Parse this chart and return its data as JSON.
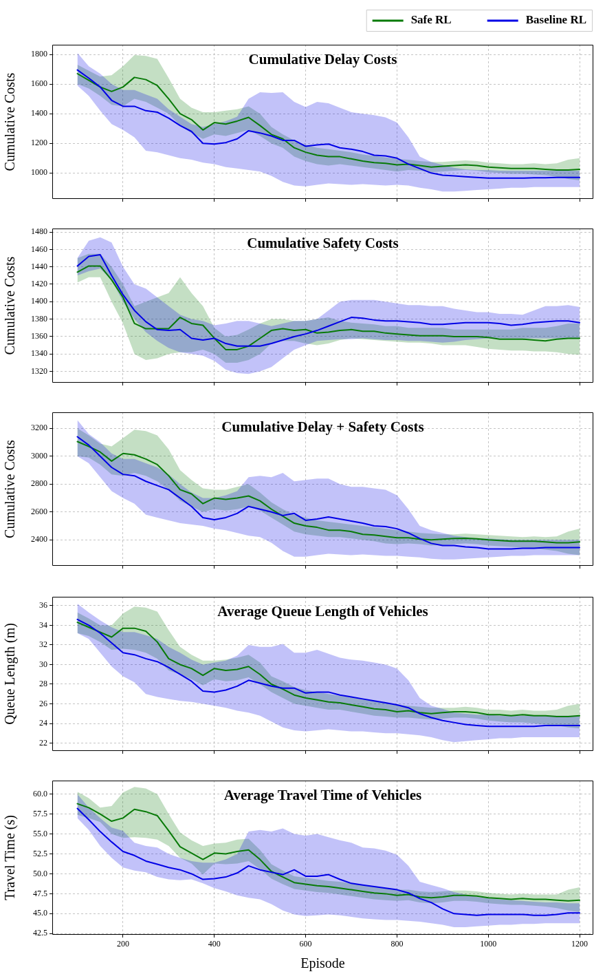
{
  "chart_data": [
    {
      "type": "line",
      "title": "Cumulative Delay Costs",
      "ylabel": "Cumulative Costs",
      "legend": "top right",
      "tick_labels": "y",
      "grid": true,
      "x": [
        100,
        125,
        150,
        175,
        200,
        225,
        250,
        275,
        300,
        325,
        350,
        375,
        400,
        425,
        450,
        475,
        500,
        525,
        550,
        575,
        600,
        625,
        650,
        675,
        700,
        725,
        750,
        775,
        800,
        825,
        850,
        875,
        900,
        925,
        950,
        975,
        1000,
        1025,
        1050,
        1075,
        1100,
        1125,
        1150,
        1175,
        1200
      ],
      "xlim": [
        45,
        1230
      ],
      "xticks": [
        200,
        400,
        600,
        800,
        1000,
        1200
      ],
      "ylim": [
        825,
        1865
      ],
      "yticks": [
        1000,
        1200,
        1400,
        1600,
        1800
      ],
      "series": [
        {
          "name": "Safe RL",
          "color": "#087a08",
          "values": [
            1670,
            1625,
            1580,
            1550,
            1580,
            1645,
            1630,
            1590,
            1500,
            1400,
            1360,
            1290,
            1340,
            1330,
            1350,
            1375,
            1320,
            1260,
            1230,
            1170,
            1140,
            1120,
            1110,
            1110,
            1095,
            1080,
            1070,
            1065,
            1055,
            1060,
            1050,
            1040,
            1045,
            1050,
            1055,
            1050,
            1040,
            1035,
            1030,
            1030,
            1030,
            1025,
            1020,
            1020,
            1025
          ],
          "lower": [
            1600,
            1570,
            1520,
            1460,
            1450,
            1500,
            1480,
            1440,
            1400,
            1320,
            1270,
            1230,
            1260,
            1250,
            1270,
            1290,
            1250,
            1200,
            1170,
            1110,
            1080,
            1060,
            1050,
            1060,
            1050,
            1040,
            1030,
            1020,
            1010,
            1020,
            1015,
            1005,
            1010,
            1015,
            1020,
            1015,
            1005,
            1000,
            995,
            995,
            990,
            985,
            975,
            960,
            950
          ],
          "upper": [
            1730,
            1690,
            1650,
            1660,
            1720,
            1795,
            1790,
            1770,
            1640,
            1500,
            1440,
            1410,
            1410,
            1420,
            1430,
            1450,
            1400,
            1310,
            1260,
            1220,
            1190,
            1170,
            1160,
            1150,
            1140,
            1125,
            1115,
            1105,
            1095,
            1090,
            1080,
            1075,
            1075,
            1080,
            1085,
            1080,
            1070,
            1065,
            1060,
            1060,
            1065,
            1060,
            1065,
            1090,
            1100
          ]
        },
        {
          "name": "Baseline RL",
          "color": "#0000e6",
          "values": [
            1695,
            1640,
            1580,
            1490,
            1450,
            1450,
            1420,
            1410,
            1370,
            1320,
            1280,
            1200,
            1195,
            1205,
            1230,
            1285,
            1270,
            1250,
            1220,
            1220,
            1180,
            1190,
            1195,
            1170,
            1160,
            1145,
            1120,
            1115,
            1100,
            1060,
            1030,
            1000,
            985,
            980,
            975,
            970,
            965,
            965,
            965,
            965,
            968,
            968,
            970,
            970,
            970
          ],
          "lower": [
            1590,
            1520,
            1420,
            1330,
            1290,
            1240,
            1150,
            1140,
            1120,
            1100,
            1090,
            1070,
            1060,
            1040,
            1030,
            1020,
            1010,
            980,
            940,
            915,
            910,
            920,
            930,
            925,
            920,
            925,
            920,
            915,
            920,
            915,
            900,
            890,
            875,
            875,
            880,
            885,
            890,
            895,
            900,
            900,
            905,
            905,
            905,
            905,
            905
          ],
          "upper": [
            1810,
            1720,
            1670,
            1600,
            1560,
            1560,
            1530,
            1500,
            1430,
            1380,
            1330,
            1310,
            1330,
            1350,
            1380,
            1500,
            1545,
            1540,
            1545,
            1480,
            1445,
            1480,
            1470,
            1440,
            1410,
            1400,
            1390,
            1375,
            1340,
            1240,
            1110,
            1075,
            1055,
            1035,
            1025,
            1020,
            1020,
            1015,
            1015,
            1015,
            1015,
            1015,
            1015,
            1015,
            1015
          ]
        }
      ]
    },
    {
      "type": "line",
      "title": "Cumulative Safety Costs",
      "ylabel": "Cumulative Costs",
      "tick_labels": "y",
      "grid": true,
      "x": [
        100,
        125,
        150,
        175,
        200,
        225,
        250,
        275,
        300,
        325,
        350,
        375,
        400,
        425,
        450,
        475,
        500,
        525,
        550,
        575,
        600,
        625,
        650,
        675,
        700,
        725,
        750,
        775,
        800,
        825,
        850,
        875,
        900,
        925,
        950,
        975,
        1000,
        1025,
        1050,
        1075,
        1100,
        1125,
        1150,
        1175,
        1200
      ],
      "xlim": [
        45,
        1230
      ],
      "xticks": [
        200,
        400,
        600,
        800,
        1000,
        1200
      ],
      "ylim": [
        1307,
        1484
      ],
      "yticks": [
        1320,
        1340,
        1360,
        1380,
        1400,
        1420,
        1440,
        1460,
        1480
      ],
      "series": [
        {
          "color": "#087a08",
          "values": [
            1434,
            1441,
            1441,
            1425,
            1405,
            1375,
            1369,
            1369,
            1369,
            1382,
            1375,
            1373,
            1358,
            1345,
            1345,
            1349,
            1358,
            1367,
            1369,
            1367,
            1368,
            1364,
            1365,
            1367,
            1368,
            1366,
            1366,
            1364,
            1363,
            1362,
            1361,
            1361,
            1361,
            1360,
            1360,
            1360,
            1359,
            1357,
            1357,
            1357,
            1356,
            1355,
            1357,
            1358,
            1358
          ],
          "lower": [
            1422,
            1428,
            1428,
            1400,
            1375,
            1340,
            1333,
            1335,
            1340,
            1342,
            1342,
            1345,
            1340,
            1330,
            1330,
            1333,
            1340,
            1352,
            1355,
            1355,
            1352,
            1350,
            1352,
            1356,
            1358,
            1357,
            1356,
            1355,
            1354,
            1353,
            1353,
            1352,
            1350,
            1350,
            1350,
            1348,
            1346,
            1345,
            1344,
            1344,
            1343,
            1343,
            1342,
            1340,
            1339
          ],
          "upper": [
            1450,
            1455,
            1455,
            1440,
            1420,
            1395,
            1400,
            1405,
            1410,
            1428,
            1410,
            1395,
            1370,
            1360,
            1362,
            1368,
            1375,
            1380,
            1380,
            1378,
            1378,
            1380,
            1382,
            1378,
            1376,
            1375,
            1374,
            1372,
            1372,
            1370,
            1370,
            1370,
            1370,
            1368,
            1368,
            1368,
            1368,
            1368,
            1368,
            1370,
            1370,
            1370,
            1372,
            1375,
            1375
          ]
        },
        {
          "color": "#0000e6",
          "values": [
            1441,
            1452,
            1454,
            1430,
            1408,
            1390,
            1377,
            1368,
            1367,
            1368,
            1358,
            1356,
            1358,
            1352,
            1349,
            1349,
            1349,
            1352,
            1356,
            1360,
            1363,
            1367,
            1372,
            1377,
            1382,
            1381,
            1379,
            1378,
            1378,
            1377,
            1376,
            1374,
            1374,
            1375,
            1376,
            1376,
            1376,
            1375,
            1373,
            1374,
            1376,
            1377,
            1378,
            1378,
            1376
          ],
          "lower": [
            1430,
            1435,
            1438,
            1425,
            1400,
            1380,
            1365,
            1355,
            1347,
            1342,
            1340,
            1338,
            1332,
            1322,
            1318,
            1317,
            1320,
            1325,
            1335,
            1345,
            1350,
            1355,
            1356,
            1357,
            1357,
            1358,
            1357,
            1356,
            1356,
            1355,
            1355,
            1354,
            1353,
            1354,
            1356,
            1357,
            1358,
            1358,
            1358,
            1358,
            1358,
            1358,
            1358,
            1358,
            1358
          ],
          "upper": [
            1450,
            1470,
            1474,
            1468,
            1440,
            1420,
            1415,
            1405,
            1395,
            1385,
            1380,
            1378,
            1373,
            1375,
            1378,
            1378,
            1375,
            1372,
            1375,
            1378,
            1378,
            1380,
            1390,
            1400,
            1402,
            1402,
            1402,
            1400,
            1398,
            1396,
            1396,
            1395,
            1395,
            1392,
            1390,
            1388,
            1388,
            1386,
            1386,
            1385,
            1390,
            1395,
            1395,
            1396,
            1394
          ]
        }
      ]
    },
    {
      "type": "line",
      "title": "Cumulative Delay + Safety Costs",
      "ylabel": "Cumulative Costs",
      "tick_labels": "y",
      "grid": true,
      "x": [
        100,
        125,
        150,
        175,
        200,
        225,
        250,
        275,
        300,
        325,
        350,
        375,
        400,
        425,
        450,
        475,
        500,
        525,
        550,
        575,
        600,
        625,
        650,
        675,
        700,
        725,
        750,
        775,
        800,
        825,
        850,
        875,
        900,
        925,
        950,
        975,
        1000,
        1025,
        1050,
        1075,
        1100,
        1125,
        1150,
        1175,
        1200
      ],
      "xlim": [
        45,
        1230
      ],
      "xticks": [
        200,
        400,
        600,
        800,
        1000,
        1200
      ],
      "ylim": [
        2214,
        3315
      ],
      "yticks": [
        2400,
        2600,
        2800,
        3000,
        3200
      ],
      "series": [
        {
          "color": "#087a08",
          "values": [
            3105,
            3070,
            3030,
            2965,
            3020,
            3010,
            2980,
            2940,
            2860,
            2760,
            2730,
            2660,
            2700,
            2690,
            2700,
            2715,
            2680,
            2620,
            2570,
            2520,
            2500,
            2490,
            2470,
            2470,
            2460,
            2440,
            2435,
            2425,
            2415,
            2415,
            2405,
            2400,
            2405,
            2410,
            2412,
            2408,
            2400,
            2395,
            2390,
            2390,
            2390,
            2385,
            2380,
            2380,
            2385
          ],
          "lower": [
            3000,
            2990,
            2940,
            2870,
            2860,
            2880,
            2860,
            2820,
            2760,
            2680,
            2640,
            2600,
            2620,
            2610,
            2620,
            2640,
            2610,
            2560,
            2510,
            2460,
            2440,
            2430,
            2420,
            2420,
            2410,
            2400,
            2390,
            2375,
            2370,
            2375,
            2370,
            2360,
            2365,
            2370,
            2375,
            2370,
            2360,
            2355,
            2350,
            2345,
            2340,
            2330,
            2320,
            2300,
            2290
          ],
          "upper": [
            3200,
            3150,
            3090,
            3070,
            3130,
            3190,
            3180,
            3150,
            3050,
            2900,
            2830,
            2770,
            2760,
            2760,
            2780,
            2800,
            2740,
            2670,
            2620,
            2580,
            2560,
            2540,
            2530,
            2520,
            2510,
            2500,
            2490,
            2480,
            2470,
            2460,
            2450,
            2445,
            2440,
            2440,
            2445,
            2440,
            2435,
            2430,
            2425,
            2420,
            2425,
            2420,
            2425,
            2460,
            2480
          ]
        },
        {
          "color": "#0000e6",
          "values": [
            3140,
            3080,
            3000,
            2920,
            2870,
            2860,
            2820,
            2790,
            2760,
            2700,
            2640,
            2560,
            2545,
            2560,
            2590,
            2640,
            2620,
            2600,
            2575,
            2590,
            2540,
            2550,
            2565,
            2550,
            2535,
            2520,
            2500,
            2495,
            2480,
            2450,
            2410,
            2375,
            2360,
            2360,
            2350,
            2345,
            2335,
            2335,
            2335,
            2340,
            2340,
            2345,
            2345,
            2345,
            2345
          ],
          "lower": [
            3000,
            2950,
            2850,
            2750,
            2700,
            2660,
            2580,
            2560,
            2540,
            2520,
            2510,
            2500,
            2480,
            2470,
            2450,
            2430,
            2420,
            2380,
            2320,
            2280,
            2280,
            2290,
            2300,
            2295,
            2290,
            2295,
            2290,
            2285,
            2285,
            2280,
            2275,
            2265,
            2260,
            2260,
            2265,
            2270,
            2275,
            2280,
            2285,
            2285,
            2290,
            2290,
            2290,
            2290,
            2290
          ],
          "upper": [
            3260,
            3160,
            3100,
            3020,
            2980,
            2980,
            2950,
            2920,
            2870,
            2800,
            2740,
            2700,
            2700,
            2720,
            2750,
            2850,
            2860,
            2850,
            2880,
            2820,
            2830,
            2840,
            2840,
            2800,
            2780,
            2780,
            2770,
            2760,
            2720,
            2620,
            2500,
            2470,
            2450,
            2430,
            2420,
            2410,
            2410,
            2405,
            2400,
            2400,
            2400,
            2400,
            2400,
            2400,
            2400
          ]
        }
      ]
    },
    {
      "type": "line",
      "title": "Average Queue Length of Vehicles",
      "ylabel": "Queue Length (m)",
      "tick_labels": "y",
      "grid": true,
      "x": [
        100,
        125,
        150,
        175,
        200,
        225,
        250,
        275,
        300,
        325,
        350,
        375,
        400,
        425,
        450,
        475,
        500,
        525,
        550,
        575,
        600,
        625,
        650,
        675,
        700,
        725,
        750,
        775,
        800,
        825,
        850,
        875,
        900,
        925,
        950,
        975,
        1000,
        1025,
        1050,
        1075,
        1100,
        1125,
        1150,
        1175,
        1200
      ],
      "xlim": [
        45,
        1230
      ],
      "xticks": [
        200,
        400,
        600,
        800,
        1000,
        1200
      ],
      "ylim": [
        21.2,
        36.9
      ],
      "yticks": [
        22,
        24,
        26,
        28,
        30,
        32,
        34,
        36
      ],
      "series": [
        {
          "color": "#087a08",
          "values": [
            34.3,
            33.8,
            33.3,
            32.8,
            33.7,
            33.7,
            33.4,
            32.3,
            30.6,
            30.0,
            29.6,
            28.9,
            29.6,
            29.4,
            29.5,
            29.8,
            29.0,
            28.0,
            27.5,
            26.9,
            26.6,
            26.4,
            26.2,
            26.1,
            25.9,
            25.7,
            25.5,
            25.4,
            25.2,
            25.3,
            25.1,
            25.0,
            25.1,
            25.2,
            25.2,
            25.1,
            24.9,
            24.9,
            24.8,
            24.9,
            24.8,
            24.8,
            24.7,
            24.7,
            24.8
          ],
          "lower": [
            33.2,
            32.9,
            32.3,
            31.5,
            31.6,
            31.5,
            31.2,
            30.6,
            29.4,
            29.0,
            28.5,
            27.9,
            28.5,
            28.3,
            28.4,
            28.7,
            28.0,
            27.2,
            26.6,
            26.0,
            25.8,
            25.6,
            25.4,
            25.4,
            25.2,
            25.0,
            24.8,
            24.7,
            24.6,
            24.6,
            24.5,
            24.4,
            24.5,
            24.6,
            24.6,
            24.5,
            24.3,
            24.2,
            24.1,
            24.1,
            24.0,
            23.9,
            23.8,
            23.6,
            23.5
          ],
          "upper": [
            35.3,
            34.7,
            34.0,
            34.0,
            35.2,
            35.9,
            35.8,
            35.4,
            33.5,
            31.8,
            31.0,
            30.4,
            30.4,
            30.5,
            30.7,
            31.0,
            30.2,
            28.8,
            28.3,
            27.7,
            27.4,
            27.2,
            27.0,
            26.8,
            26.7,
            26.5,
            26.3,
            26.1,
            25.9,
            25.8,
            25.7,
            25.6,
            25.6,
            25.6,
            25.7,
            25.6,
            25.4,
            25.4,
            25.3,
            25.4,
            25.3,
            25.3,
            25.4,
            25.8,
            26.0
          ]
        },
        {
          "color": "#0000e6",
          "values": [
            34.6,
            34.0,
            33.2,
            32.2,
            31.2,
            31.0,
            30.6,
            30.3,
            29.7,
            29.0,
            28.3,
            27.3,
            27.2,
            27.4,
            27.8,
            28.4,
            28.1,
            27.8,
            27.6,
            27.6,
            27.1,
            27.2,
            27.2,
            26.9,
            26.7,
            26.5,
            26.3,
            26.1,
            25.9,
            25.6,
            25.0,
            24.6,
            24.3,
            24.1,
            23.9,
            23.8,
            23.7,
            23.7,
            23.7,
            23.7,
            23.7,
            23.8,
            23.8,
            23.8,
            23.8
          ],
          "lower": [
            33.2,
            32.6,
            31.2,
            29.8,
            28.8,
            28.2,
            27.0,
            26.7,
            26.5,
            26.3,
            26.2,
            26.0,
            25.8,
            25.6,
            25.3,
            25.1,
            24.8,
            24.2,
            23.6,
            23.3,
            23.2,
            23.3,
            23.4,
            23.3,
            23.2,
            23.2,
            23.1,
            23.0,
            23.0,
            22.9,
            22.8,
            22.6,
            22.3,
            22.1,
            22.2,
            22.3,
            22.4,
            22.5,
            22.5,
            22.6,
            22.6,
            22.6,
            22.6,
            22.6,
            22.6
          ],
          "upper": [
            36.2,
            35.3,
            34.5,
            33.8,
            33.3,
            33.3,
            33.0,
            32.6,
            31.8,
            31.2,
            30.5,
            30.0,
            30.2,
            30.4,
            30.9,
            32.0,
            31.8,
            31.8,
            32.1,
            31.2,
            31.2,
            31.5,
            31.1,
            30.7,
            30.5,
            30.4,
            30.2,
            30.0,
            29.6,
            28.4,
            26.6,
            25.8,
            25.5,
            25.1,
            25.0,
            24.9,
            24.9,
            24.8,
            24.8,
            24.8,
            24.8,
            24.8,
            24.8,
            24.8,
            24.8
          ]
        }
      ]
    },
    {
      "type": "line",
      "title": "Average Travel Time of Vehicles",
      "ylabel": "Travel Time (s)",
      "xlabel": "Episode",
      "grid": true,
      "x": [
        100,
        125,
        150,
        175,
        200,
        225,
        250,
        275,
        300,
        325,
        350,
        375,
        400,
        425,
        450,
        475,
        500,
        525,
        550,
        575,
        600,
        625,
        650,
        675,
        700,
        725,
        750,
        775,
        800,
        825,
        850,
        875,
        900,
        925,
        950,
        975,
        1000,
        1025,
        1050,
        1075,
        1100,
        1125,
        1150,
        1175,
        1200
      ],
      "xlim": [
        45,
        1230
      ],
      "xticks": [
        200,
        400,
        600,
        800,
        1000,
        1200
      ],
      "ylim": [
        42.35,
        61.7
      ],
      "yticks": [
        42.5,
        {
          "value": 45,
          "label": "45.0"
        },
        47.5,
        {
          "value": 50,
          "label": "50.0"
        },
        52.5,
        {
          "value": 55,
          "label": "55.0"
        },
        57.5,
        {
          "value": 60,
          "label": "60.0"
        }
      ],
      "series": [
        {
          "color": "#087a08",
          "values": [
            58.8,
            58.3,
            57.5,
            56.6,
            57.0,
            58.1,
            57.8,
            57.3,
            55.4,
            53.4,
            52.6,
            51.8,
            52.6,
            52.5,
            52.8,
            53.0,
            51.8,
            50.3,
            49.6,
            48.9,
            48.7,
            48.5,
            48.4,
            48.2,
            48.0,
            47.8,
            47.6,
            47.5,
            47.3,
            47.4,
            47.1,
            47.0,
            47.1,
            47.3,
            47.3,
            47.2,
            47.0,
            46.9,
            46.8,
            46.9,
            46.8,
            46.8,
            46.7,
            46.6,
            46.7
          ],
          "lower": [
            57.4,
            57.0,
            56.5,
            55.0,
            54.5,
            54.6,
            54.5,
            54.3,
            53.5,
            52.0,
            51.3,
            49.9,
            51.3,
            51.2,
            51.3,
            51.6,
            50.6,
            49.4,
            48.7,
            48.1,
            47.9,
            47.7,
            47.6,
            47.4,
            47.2,
            47.0,
            46.8,
            46.7,
            46.6,
            46.7,
            46.4,
            46.3,
            46.4,
            46.6,
            46.6,
            46.5,
            46.3,
            46.2,
            46.1,
            46.1,
            46.0,
            45.9,
            45.7,
            45.4,
            45.2
          ],
          "upper": [
            60.3,
            59.5,
            58.3,
            58.5,
            60.2,
            60.9,
            60.7,
            60.0,
            57.5,
            55.2,
            54.2,
            53.5,
            53.8,
            53.9,
            54.3,
            54.4,
            53.0,
            51.2,
            50.4,
            49.7,
            49.5,
            49.3,
            49.1,
            49.0,
            48.8,
            48.6,
            48.4,
            48.2,
            48.0,
            48.0,
            47.8,
            47.7,
            47.8,
            47.9,
            47.9,
            47.8,
            47.6,
            47.5,
            47.4,
            47.5,
            47.4,
            47.4,
            47.4,
            48.0,
            48.3
          ]
        },
        {
          "color": "#0000e6",
          "values": [
            58.2,
            56.8,
            55.3,
            54.0,
            52.8,
            52.3,
            51.6,
            51.2,
            50.8,
            50.5,
            50.0,
            49.3,
            49.4,
            49.6,
            50.1,
            51.0,
            50.5,
            50.2,
            49.9,
            50.5,
            49.7,
            49.7,
            49.9,
            49.3,
            48.8,
            48.6,
            48.4,
            48.2,
            48.0,
            47.6,
            46.9,
            46.4,
            45.6,
            45.0,
            44.9,
            44.8,
            44.9,
            44.9,
            44.9,
            44.9,
            44.8,
            44.8,
            44.9,
            45.1,
            45.1
          ],
          "lower": [
            57.0,
            55.5,
            53.5,
            52.0,
            50.8,
            50.4,
            50.2,
            49.6,
            49.3,
            49.2,
            49.3,
            48.8,
            48.2,
            47.8,
            47.3,
            47.0,
            46.8,
            46.2,
            45.4,
            44.9,
            44.7,
            44.8,
            44.9,
            44.8,
            44.6,
            44.4,
            44.3,
            44.2,
            44.2,
            44.1,
            44.0,
            43.8,
            43.6,
            43.3,
            43.3,
            43.4,
            43.5,
            43.6,
            43.6,
            43.7,
            43.7,
            43.8,
            43.8,
            43.8,
            43.8
          ],
          "upper": [
            60.0,
            58.3,
            57.0,
            55.8,
            55.4,
            53.9,
            53.5,
            53.3,
            52.5,
            52.0,
            51.6,
            51.4,
            51.4,
            51.8,
            52.5,
            55.3,
            55.5,
            55.3,
            55.7,
            55.0,
            54.8,
            55.0,
            54.6,
            54.2,
            53.9,
            53.3,
            53.2,
            52.9,
            52.4,
            51.0,
            49.0,
            48.6,
            48.2,
            47.7,
            47.4,
            47.1,
            46.9,
            46.8,
            46.7,
            46.6,
            46.5,
            46.4,
            46.4,
            46.3,
            46.3
          ]
        }
      ]
    }
  ]
}
